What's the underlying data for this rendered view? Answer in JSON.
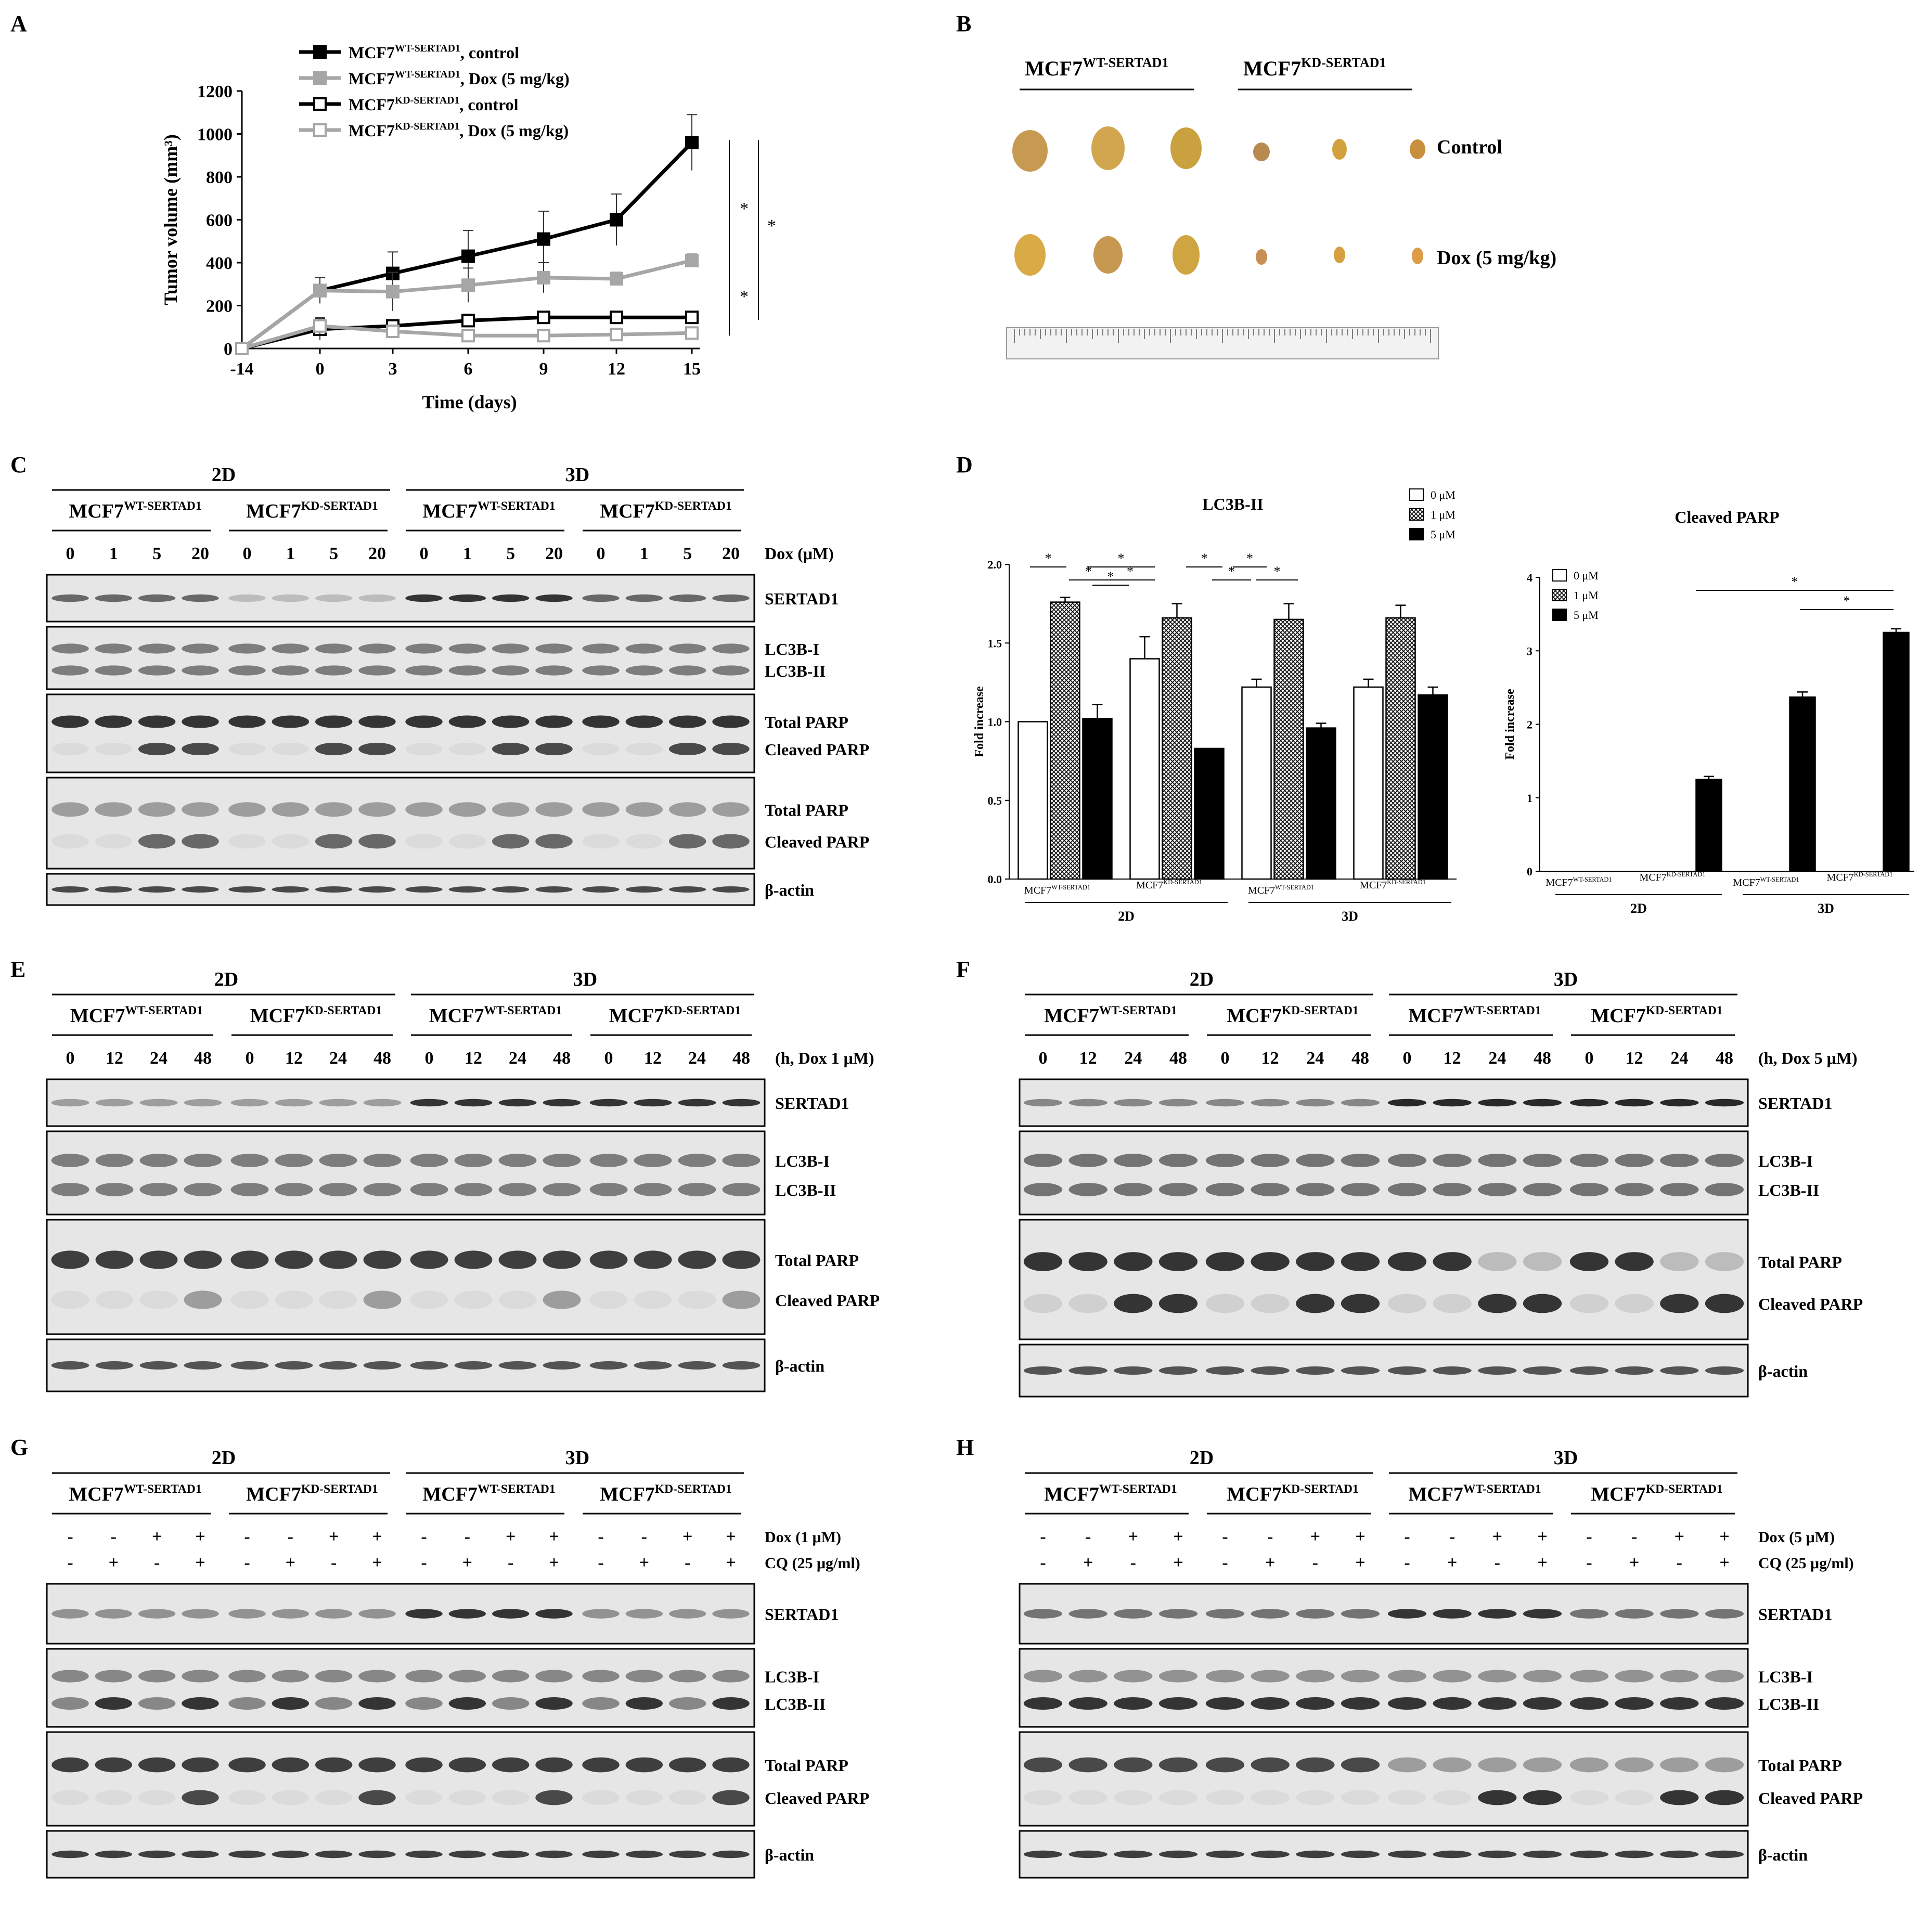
{
  "panels": {
    "A": "A",
    "B": "B",
    "C": "C",
    "D": "D",
    "E": "E",
    "F": "F",
    "G": "G",
    "H": "H"
  },
  "chart_data": [
    {
      "panel": "A",
      "type": "line",
      "xlabel": "Time (days)",
      "ylabel": "Tumor volume (mm³)",
      "x": [
        -14,
        0,
        3,
        6,
        9,
        12,
        15
      ],
      "xticks": [
        "-14",
        "0",
        "3",
        "6",
        "9",
        "12",
        "15"
      ],
      "ylim": [
        0,
        1200
      ],
      "yticks": [
        "0",
        "200",
        "400",
        "600",
        "800",
        "1000",
        "1200"
      ],
      "series": [
        {
          "name": "MCF7WT-SERTAD1, control",
          "base": "MCF7",
          "sup": "WT-SERTAD1",
          "suffix": ", control",
          "color": "#000000",
          "filled": true,
          "values": [
            0,
            270,
            350,
            430,
            510,
            600,
            960
          ],
          "err": [
            0,
            60,
            100,
            120,
            130,
            120,
            130
          ]
        },
        {
          "name": "MCF7WT-SERTAD1, Dox (5 mg/kg)",
          "base": "MCF7",
          "sup": "WT-SERTAD1",
          "suffix": ", Dox (5 mg/kg)",
          "color": "#a6a6a6",
          "filled": true,
          "values": [
            0,
            270,
            265,
            295,
            330,
            325,
            410
          ],
          "err": [
            0,
            60,
            90,
            80,
            70,
            30,
            30
          ]
        },
        {
          "name": "MCF7KD-SERTAD1, control",
          "base": "MCF7",
          "sup": "KD-SERTAD1",
          "suffix": ", control",
          "color": "#000000",
          "filled": false,
          "values": [
            0,
            90,
            105,
            130,
            145,
            145,
            145
          ],
          "err": [
            0,
            50,
            30,
            30,
            20,
            15,
            15
          ]
        },
        {
          "name": "MCF7KD-SERTAD1, Dox (5 mg/kg)",
          "base": "MCF7",
          "sup": "KD-SERTAD1",
          "suffix": ", Dox (5 mg/kg)",
          "color": "#a6a6a6",
          "filled": false,
          "values": [
            0,
            105,
            80,
            60,
            60,
            65,
            72
          ],
          "err": [
            0,
            40,
            20,
            15,
            15,
            15,
            15
          ]
        }
      ],
      "significance": [
        "*",
        "*",
        "*"
      ]
    },
    {
      "panel": "D-left",
      "type": "bar",
      "title": "LC3B-II",
      "ylabel": "Fold increase",
      "ylim": [
        0,
        2.0
      ],
      "yticks": [
        "0.0",
        "0.5",
        "1.0",
        "1.5",
        "2.0"
      ],
      "legend": [
        "0 μM",
        "1 μM",
        "5 μM"
      ],
      "groups": [
        {
          "base": "MCF7",
          "sup": "WT-SERTAD1",
          "values": [
            1.0,
            1.76,
            1.02
          ],
          "err": [
            0,
            0.03,
            0.09
          ]
        },
        {
          "base": "MCF7",
          "sup": "KD-SERTAD1",
          "values": [
            1.4,
            1.66,
            0.83
          ],
          "err": [
            0.14,
            0.09,
            0
          ]
        },
        {
          "base": "MCF7",
          "sup": "WT-SERTAD1",
          "values": [
            1.22,
            1.65,
            0.96
          ],
          "err": [
            0.05,
            0.1,
            0.03
          ]
        },
        {
          "base": "MCF7",
          "sup": "KD-SERTAD1",
          "values": [
            1.22,
            1.66,
            1.17
          ],
          "err": [
            0.05,
            0.08,
            0.05
          ]
        }
      ],
      "conditions": [
        "2D",
        "3D"
      ],
      "significance": [
        "*",
        "*",
        "*",
        "*",
        "*",
        "*",
        "*",
        "*",
        "*"
      ]
    },
    {
      "panel": "D-right",
      "type": "bar",
      "title": "Cleaved PARP",
      "ylabel": "Fold increase",
      "ylim": [
        0,
        4
      ],
      "yticks": [
        "0",
        "1",
        "2",
        "3",
        "4"
      ],
      "legend": [
        "0 μM",
        "1 μM",
        "5 μM"
      ],
      "groups": [
        {
          "base": "MCF7",
          "sup": "WT-SERTAD1",
          "values": [
            0,
            0,
            0
          ],
          "err": [
            0,
            0,
            0
          ]
        },
        {
          "base": "MCF7",
          "sup": "KD-SERTAD1",
          "values": [
            0,
            0,
            1.25
          ],
          "err": [
            0,
            0,
            0.04
          ]
        },
        {
          "base": "MCF7",
          "sup": "WT-SERTAD1",
          "values": [
            0,
            0,
            2.37
          ],
          "err": [
            0,
            0,
            0.07
          ]
        },
        {
          "base": "MCF7",
          "sup": "KD-SERTAD1",
          "values": [
            0,
            0,
            3.25
          ],
          "err": [
            0,
            0,
            0.05
          ]
        }
      ],
      "conditions": [
        "2D",
        "3D"
      ],
      "significance": [
        "*",
        "*"
      ]
    }
  ],
  "photo": {
    "col1": {
      "base": "MCF7",
      "sup": "WT-SERTAD1"
    },
    "col2": {
      "base": "MCF7",
      "sup": "KD-SERTAD1"
    },
    "row1": "Control",
    "row2": "Dox (5 mg/kg)"
  },
  "blots": {
    "C": {
      "conditions": [
        "2D",
        "3D"
      ],
      "groups": [
        {
          "base": "MCF7",
          "sup": "WT-SERTAD1"
        },
        {
          "base": "MCF7",
          "sup": "KD-SERTAD1"
        },
        {
          "base": "MCF7",
          "sup": "WT-SERTAD1"
        },
        {
          "base": "MCF7",
          "sup": "KD-SERTAD1"
        }
      ],
      "lanes": [
        "0",
        "1",
        "5",
        "20"
      ],
      "lane_label": "Dox (μM)",
      "panels": [
        {
          "labels": [
            "SERTAD1"
          ]
        },
        {
          "labels": [
            "LC3B-I",
            "LC3B-II"
          ]
        },
        {
          "labels": [
            "Total  PARP",
            "Cleaved  PARP"
          ]
        },
        {
          "labels": [
            "Total  PARP",
            "Cleaved  PARP"
          ]
        },
        {
          "labels": [
            "β-actin"
          ]
        }
      ]
    },
    "E": {
      "conditions": [
        "2D",
        "3D"
      ],
      "groups": [
        {
          "base": "MCF7",
          "sup": "WT-SERTAD1"
        },
        {
          "base": "MCF7",
          "sup": "KD-SERTAD1"
        },
        {
          "base": "MCF7",
          "sup": "WT-SERTAD1"
        },
        {
          "base": "MCF7",
          "sup": "KD-SERTAD1"
        }
      ],
      "lanes": [
        "0",
        "12",
        "24",
        "48"
      ],
      "lane_label": "(h, Dox  1 μM)",
      "panels": [
        {
          "labels": [
            "SERTAD1"
          ]
        },
        {
          "labels": [
            "LC3B-I",
            "LC3B-II"
          ]
        },
        {
          "labels": [
            "Total  PARP",
            "Cleaved  PARP"
          ]
        },
        {
          "labels": [
            "β-actin"
          ]
        }
      ]
    },
    "F": {
      "conditions": [
        "2D",
        "3D"
      ],
      "groups": [
        {
          "base": "MCF7",
          "sup": "WT-SERTAD1"
        },
        {
          "base": "MCF7",
          "sup": "KD-SERTAD1"
        },
        {
          "base": "MCF7",
          "sup": "WT-SERTAD1"
        },
        {
          "base": "MCF7",
          "sup": "KD-SERTAD1"
        }
      ],
      "lanes": [
        "0",
        "12",
        "24",
        "48"
      ],
      "lane_label": "(h, Dox  5 μM)",
      "panels": [
        {
          "labels": [
            "SERTAD1"
          ]
        },
        {
          "labels": [
            "LC3B-I",
            "LC3B-II"
          ]
        },
        {
          "labels": [
            "Total  PARP",
            "Cleaved  PARP"
          ]
        },
        {
          "labels": [
            "β-actin"
          ]
        }
      ]
    },
    "G": {
      "conditions": [
        "2D",
        "3D"
      ],
      "groups": [
        {
          "base": "MCF7",
          "sup": "WT-SERTAD1"
        },
        {
          "base": "MCF7",
          "sup": "KD-SERTAD1"
        },
        {
          "base": "MCF7",
          "sup": "WT-SERTAD1"
        },
        {
          "base": "MCF7",
          "sup": "KD-SERTAD1"
        }
      ],
      "dox": [
        "-",
        "-",
        "+",
        "+"
      ],
      "cq": [
        "-",
        "+",
        "-",
        "+"
      ],
      "dox_label": "Dox (1 μM)",
      "cq_label": "CQ (25 μg/ml)",
      "panels": [
        {
          "labels": [
            "SERTAD1"
          ]
        },
        {
          "labels": [
            "LC3B-I",
            "LC3B-II"
          ]
        },
        {
          "labels": [
            "Total  PARP",
            "Cleaved  PARP"
          ]
        },
        {
          "labels": [
            "β-actin"
          ]
        }
      ]
    },
    "H": {
      "conditions": [
        "2D",
        "3D"
      ],
      "groups": [
        {
          "base": "MCF7",
          "sup": "WT-SERTAD1"
        },
        {
          "base": "MCF7",
          "sup": "KD-SERTAD1"
        },
        {
          "base": "MCF7",
          "sup": "WT-SERTAD1"
        },
        {
          "base": "MCF7",
          "sup": "KD-SERTAD1"
        }
      ],
      "dox": [
        "-",
        "-",
        "+",
        "+"
      ],
      "cq": [
        "-",
        "+",
        "-",
        "+"
      ],
      "dox_label": "Dox (5 μM)",
      "cq_label": "CQ (25 μg/ml)",
      "panels": [
        {
          "labels": [
            "SERTAD1"
          ]
        },
        {
          "labels": [
            "LC3B-I",
            "LC3B-II"
          ]
        },
        {
          "labels": [
            "Total  PARP",
            "Cleaved  PARP"
          ]
        },
        {
          "labels": [
            "β-actin"
          ]
        }
      ]
    }
  }
}
